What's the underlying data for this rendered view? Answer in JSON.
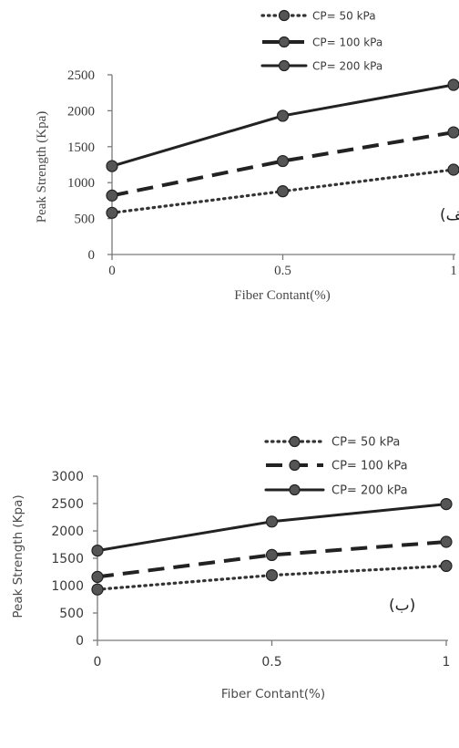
{
  "chart_data": [
    {
      "type": "line",
      "title": "",
      "xlabel": "Fiber Contant(%)",
      "ylabel": "Peak Strength (Kpa)",
      "annotation": "(الف)",
      "x": [
        0,
        0.5,
        1
      ],
      "x_tick_labels": [
        "0",
        "0.5",
        "1"
      ],
      "ylim": [
        0,
        2500
      ],
      "y_ticks": [
        0,
        500,
        1000,
        1500,
        2000,
        2500
      ],
      "y_tick_labels": [
        "0",
        "500",
        "1000",
        "1500",
        "2000",
        "2500"
      ],
      "legend_position": "top-right",
      "series": [
        {
          "name": "CP= 50 kPa",
          "values": [
            580,
            880,
            1180
          ],
          "style": "dotted",
          "color": "#333333"
        },
        {
          "name": "CP= 100 kPa",
          "values": [
            820,
            1300,
            1700
          ],
          "style": "dashed",
          "color": "#222222"
        },
        {
          "name": "CP= 200 kPa",
          "values": [
            1230,
            1930,
            2360
          ],
          "style": "solid",
          "color": "#222222"
        }
      ]
    },
    {
      "type": "line",
      "title": "",
      "xlabel": "Fiber Contant(%)",
      "ylabel": "Peak Strength (Kpa)",
      "annotation": "(ب)",
      "x": [
        0,
        0.5,
        1
      ],
      "x_tick_labels": [
        "0",
        "0.5",
        "1"
      ],
      "ylim": [
        0,
        3000
      ],
      "y_ticks": [
        0,
        500,
        1000,
        1500,
        2000,
        2500,
        3000
      ],
      "y_tick_labels": [
        "0",
        "500",
        "1000",
        "1500",
        "2000",
        "2500",
        "3000"
      ],
      "legend_position": "top-right",
      "series": [
        {
          "name": "CP= 50 kPa",
          "values": [
            930,
            1190,
            1360
          ],
          "style": "dotted",
          "color": "#333333"
        },
        {
          "name": "CP= 100 kPa",
          "values": [
            1160,
            1560,
            1800
          ],
          "style": "dashed",
          "color": "#222222"
        },
        {
          "name": "CP= 200 kPa",
          "values": [
            1640,
            2170,
            2490
          ],
          "style": "solid",
          "color": "#222222"
        }
      ]
    }
  ]
}
